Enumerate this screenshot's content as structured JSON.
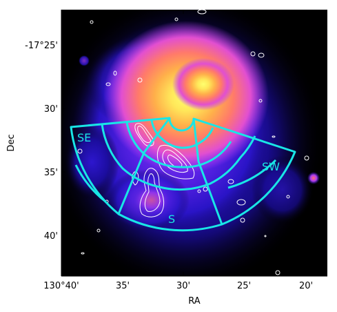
{
  "image": {
    "description_tags": [
      "x-ray-map",
      "radio-contours",
      "sector-overlay"
    ],
    "colormap": "gnuplot2-like (black-blue-purple-pink-orange-yellow)"
  },
  "axes": {
    "xlabel": "RA",
    "ylabel": "Dec",
    "x_ticks": [
      "130°40'",
      "35'",
      "30'",
      "25'",
      "20'"
    ],
    "y_ticks": [
      "-17°25'",
      "30'",
      "35'",
      "40'"
    ]
  },
  "sectors": [
    {
      "label": "SE",
      "color": "#19e6e6"
    },
    {
      "label": "SW",
      "color": "#19e6e6"
    },
    {
      "label": "S",
      "color": "#19e6e6"
    }
  ],
  "colors": {
    "sector_outline": "#19e6e6",
    "contours": "#ffffff",
    "background": "#000000"
  }
}
